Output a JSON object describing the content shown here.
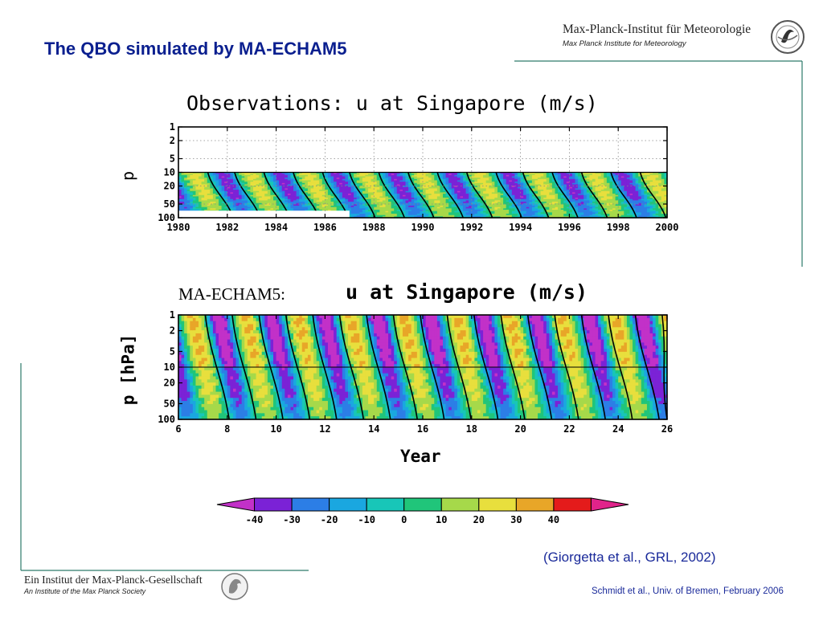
{
  "slide": {
    "title": "The QBO simulated by MA-ECHAM5",
    "institute_name": "Max-Planck-Institut für Meteorologie",
    "institute_sub": "Max Planck Institute for Meteorology",
    "footer_main": "Ein Institut der Max-Planck-Gesellschaft",
    "footer_sub": "An Institute of the Max Planck Society",
    "citation": "(Giorgetta et al., GRL, 2002)",
    "credit": "Schmidt et al., Univ. of Bremen, February 2006",
    "accent_color": "#0a1f8f",
    "rule_color": "#2d7a6a"
  },
  "chart_data": [
    {
      "type": "heatmap",
      "title": "Observations: u at Singapore (m/s)",
      "xlabel": "",
      "ylabel": "p",
      "x_ticks": [
        "1980",
        "1982",
        "1984",
        "1986",
        "1988",
        "1990",
        "1992",
        "1994",
        "1996",
        "1998",
        "2000"
      ],
      "xlim": [
        1980,
        2000
      ],
      "y_ticks": [
        "1",
        "2",
        "5",
        "10",
        "20",
        "50",
        "100"
      ],
      "ylim": [
        100,
        1
      ],
      "y_scale": "log",
      "data_levels": [
        10,
        100
      ],
      "missing_data": {
        "x_range": [
          1980,
          1987
        ],
        "y_range": [
          70,
          100
        ]
      },
      "grid": "dotted",
      "qbo_period_months": 28,
      "phases": [
        {
          "sign": "easterly",
          "x_start": 1980.0
        },
        {
          "sign": "westerly",
          "x_start": 1981.2
        },
        {
          "sign": "easterly",
          "x_start": 1982.3
        },
        {
          "sign": "westerly",
          "x_start": 1983.5
        },
        {
          "sign": "easterly",
          "x_start": 1984.7
        },
        {
          "sign": "westerly",
          "x_start": 1985.9
        },
        {
          "sign": "easterly",
          "x_start": 1987.0
        },
        {
          "sign": "westerly",
          "x_start": 1988.2
        },
        {
          "sign": "easterly",
          "x_start": 1989.4
        },
        {
          "sign": "westerly",
          "x_start": 1990.6
        },
        {
          "sign": "easterly",
          "x_start": 1991.8
        },
        {
          "sign": "westerly",
          "x_start": 1993.0
        },
        {
          "sign": "easterly",
          "x_start": 1994.1
        },
        {
          "sign": "westerly",
          "x_start": 1995.3
        },
        {
          "sign": "easterly",
          "x_start": 1996.5
        },
        {
          "sign": "westerly",
          "x_start": 1997.7
        },
        {
          "sign": "easterly",
          "x_start": 1998.9
        }
      ]
    },
    {
      "type": "heatmap",
      "title_prefix": "MA-ECHAM5:",
      "title": "u at Singapore (m/s)",
      "xlabel": "Year",
      "ylabel": "p [hPa]",
      "x_ticks": [
        "6",
        "8",
        "10",
        "12",
        "14",
        "16",
        "18",
        "20",
        "22",
        "24",
        "26"
      ],
      "xlim": [
        6,
        26
      ],
      "y_ticks": [
        "1",
        "2",
        "5",
        "10",
        "20",
        "50",
        "100"
      ],
      "ylim": [
        100,
        1
      ],
      "y_scale": "log",
      "data_levels": [
        1,
        100
      ],
      "reference_line_level": 10,
      "qbo_period_months": 26,
      "phases": [
        {
          "sign": "easterly",
          "x_start": 6.0
        },
        {
          "sign": "westerly",
          "x_start": 7.1
        },
        {
          "sign": "easterly",
          "x_start": 8.2
        },
        {
          "sign": "westerly",
          "x_start": 9.3
        },
        {
          "sign": "easterly",
          "x_start": 10.4
        },
        {
          "sign": "westerly",
          "x_start": 11.5
        },
        {
          "sign": "easterly",
          "x_start": 12.6
        },
        {
          "sign": "westerly",
          "x_start": 13.7
        },
        {
          "sign": "easterly",
          "x_start": 14.8
        },
        {
          "sign": "westerly",
          "x_start": 15.9
        },
        {
          "sign": "easterly",
          "x_start": 17.0
        },
        {
          "sign": "westerly",
          "x_start": 18.1
        },
        {
          "sign": "easterly",
          "x_start": 19.2
        },
        {
          "sign": "westerly",
          "x_start": 20.3
        },
        {
          "sign": "easterly",
          "x_start": 21.4
        },
        {
          "sign": "westerly",
          "x_start": 22.5
        },
        {
          "sign": "easterly",
          "x_start": 23.6
        },
        {
          "sign": "westerly",
          "x_start": 24.7
        },
        {
          "sign": "easterly",
          "x_start": 25.8
        }
      ]
    }
  ],
  "colorbar": {
    "labels": [
      "-40",
      "-30",
      "-20",
      "-10",
      "0",
      "10",
      "20",
      "30",
      "40"
    ],
    "levels": [
      -50,
      -40,
      -30,
      -20,
      -10,
      0,
      10,
      20,
      30,
      40,
      50
    ],
    "colors": [
      "#c231c8",
      "#7b22d6",
      "#2c7ee6",
      "#1aa7e0",
      "#18c6b8",
      "#20c57a",
      "#a6d94a",
      "#e8df3d",
      "#e8a628",
      "#e41b1b",
      "#e0238a"
    ]
  }
}
